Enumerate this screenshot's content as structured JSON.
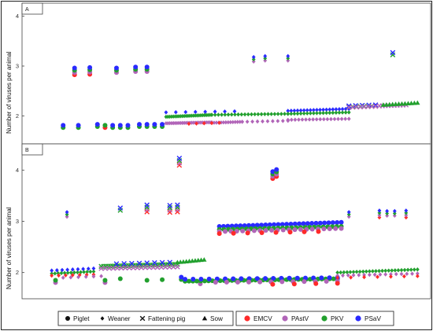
{
  "chart_data": {
    "type": "scatter",
    "ylabel": "Number of viruses per animal",
    "shape_legend": [
      {
        "name": "Piglet",
        "shape": "circle"
      },
      {
        "name": "Weaner",
        "shape": "diamond"
      },
      {
        "name": "Fattening pig",
        "shape": "cross"
      },
      {
        "name": "Sow",
        "shape": "triangle"
      }
    ],
    "virus_legend": [
      {
        "name": "EMCV",
        "color": "#ff2a2a"
      },
      {
        "name": "PAstV",
        "color": "#b165b8"
      },
      {
        "name": "PKV",
        "color": "#22a02e"
      },
      {
        "name": "PSaV",
        "color": "#2a2aff"
      }
    ],
    "panels": [
      {
        "label": "A",
        "ylim": [
          1.5,
          4.2
        ],
        "yticks": [
          "2",
          "3",
          "4"
        ],
        "clusters": [
          {
            "x": 0.05,
            "y": 1.78,
            "shape": "circle",
            "members": [
              "PKV",
              "PSaV"
            ]
          },
          {
            "x": 0.09,
            "y": 1.78,
            "shape": "circle",
            "members": [
              "PKV",
              "PSaV"
            ]
          },
          {
            "x": 0.14,
            "y": 1.8,
            "shape": "circle",
            "members": [
              "PKV",
              "PSaV"
            ]
          },
          {
            "x": 0.16,
            "y": 1.78,
            "shape": "circle",
            "members": [
              "EMCV",
              "PKV"
            ]
          },
          {
            "x": 0.18,
            "y": 1.78,
            "shape": "circle",
            "members": [
              "PKV",
              "PSaV"
            ]
          },
          {
            "x": 0.2,
            "y": 1.78,
            "shape": "circle",
            "members": [
              "PKV",
              "PSaV"
            ]
          },
          {
            "x": 0.22,
            "y": 1.78,
            "shape": "circle",
            "members": [
              "PKV",
              "PSaV"
            ]
          },
          {
            "x": 0.25,
            "y": 1.8,
            "shape": "circle",
            "members": [
              "PKV",
              "PSaV"
            ]
          },
          {
            "x": 0.27,
            "y": 1.8,
            "shape": "circle",
            "members": [
              "PKV",
              "PSaV"
            ]
          },
          {
            "x": 0.29,
            "y": 1.8,
            "shape": "circle",
            "members": [
              "PKV",
              "PSaV"
            ]
          },
          {
            "x": 0.31,
            "y": 1.8,
            "shape": "circle",
            "members": [
              "PKV",
              "PSaV"
            ]
          },
          {
            "x": 0.08,
            "y": 2.87,
            "shape": "circle",
            "members": [
              "EMCV",
              "PAstV",
              "PKV",
              "PSaV"
            ]
          },
          {
            "x": 0.12,
            "y": 2.88,
            "shape": "circle",
            "members": [
              "EMCV",
              "PAstV",
              "PKV",
              "PSaV"
            ]
          },
          {
            "x": 0.19,
            "y": 2.9,
            "shape": "circle",
            "members": [
              "PAstV",
              "PKV",
              "PSaV"
            ]
          },
          {
            "x": 0.24,
            "y": 2.92,
            "shape": "circle",
            "members": [
              "PAstV",
              "PKV",
              "PSaV"
            ]
          },
          {
            "x": 0.27,
            "y": 2.92,
            "shape": "circle",
            "members": [
              "PAstV",
              "PKV",
              "PSaV"
            ]
          },
          {
            "x": 0.55,
            "y": 3.12,
            "shape": "diamond",
            "members": [
              "PAstV",
              "PKV",
              "PSaV"
            ]
          },
          {
            "x": 0.58,
            "y": 3.14,
            "shape": "diamond",
            "members": [
              "PAstV",
              "PKV",
              "PSaV"
            ]
          },
          {
            "x": 0.64,
            "y": 3.14,
            "shape": "diamond",
            "members": [
              "PAstV",
              "PKV",
              "PSaV"
            ]
          },
          {
            "x": 0.915,
            "y": 3.24,
            "shape": "cross",
            "members": [
              "PKV",
              "PSaV"
            ]
          }
        ],
        "runs": [
          {
            "x0": 0.32,
            "x1": 0.44,
            "y0": 1.98,
            "y1": 2.02,
            "n": 26,
            "shape": "diamond",
            "color": "PKV"
          },
          {
            "x0": 0.32,
            "x1": 0.44,
            "y0": 1.85,
            "y1": 1.87,
            "n": 26,
            "shape": "diamond",
            "color": "PAstV"
          },
          {
            "x0": 0.44,
            "x1": 0.64,
            "y0": 2.02,
            "y1": 2.04,
            "n": 24,
            "shape": "diamond",
            "color": "PKV"
          },
          {
            "x0": 0.44,
            "x1": 0.52,
            "y0": 1.86,
            "y1": 1.88,
            "n": 14,
            "shape": "diamond",
            "color": "PAstV"
          },
          {
            "x0": 0.38,
            "x1": 0.46,
            "y0": 1.84,
            "y1": 1.86,
            "n": 5,
            "shape": "diamond",
            "color": "EMCV"
          },
          {
            "x0": 0.52,
            "x1": 0.64,
            "y0": 1.88,
            "y1": 1.9,
            "n": 10,
            "shape": "diamond",
            "color": "PAstV"
          },
          {
            "x0": 0.32,
            "x1": 0.5,
            "y0": 2.07,
            "y1": 2.09,
            "n": 8,
            "shape": "diamond",
            "color": "PSaV"
          },
          {
            "x0": 0.64,
            "x1": 0.8,
            "y0": 2.1,
            "y1": 2.14,
            "n": 20,
            "shape": "diamond",
            "color": "PSaV"
          },
          {
            "x0": 0.64,
            "x1": 0.8,
            "y0": 2.04,
            "y1": 2.07,
            "n": 20,
            "shape": "diamond",
            "color": "PKV"
          },
          {
            "x0": 0.64,
            "x1": 0.8,
            "y0": 1.92,
            "y1": 1.94,
            "n": 18,
            "shape": "diamond",
            "color": "PAstV"
          },
          {
            "x0": 0.8,
            "x1": 0.87,
            "y0": 2.18,
            "y1": 2.2,
            "n": 8,
            "shape": "cross",
            "color": "PKV"
          },
          {
            "x0": 0.8,
            "x1": 0.87,
            "y0": 2.2,
            "y1": 2.22,
            "n": 5,
            "shape": "cross",
            "color": "PSaV"
          },
          {
            "x0": 0.8,
            "x1": 0.87,
            "y0": 2.17,
            "y1": 2.19,
            "n": 8,
            "shape": "cross",
            "color": "PAstV"
          },
          {
            "x0": 0.88,
            "x1": 0.95,
            "y0": 2.2,
            "y1": 2.22,
            "n": 10,
            "shape": "cross",
            "color": "PAstV"
          },
          {
            "x0": 0.89,
            "x1": 0.98,
            "y0": 2.22,
            "y1": 2.26,
            "n": 12,
            "shape": "triangle",
            "color": "PKV"
          }
        ]
      },
      {
        "label": "B",
        "ylim": [
          1.55,
          4.45
        ],
        "yticks": [
          "2",
          "3",
          "4"
        ],
        "clusters": [
          {
            "x": 0.06,
            "y": 3.12,
            "shape": "diamond",
            "members": [
              "PAstV",
              "PKV",
              "PSaV"
            ]
          },
          {
            "x": 0.2,
            "y": 3.23,
            "shape": "cross",
            "members": [
              "PKV",
              "PSaV"
            ]
          },
          {
            "x": 0.27,
            "y": 3.23,
            "shape": "cross",
            "members": [
              "EMCV",
              "PAstV",
              "PKV",
              "PSaV"
            ]
          },
          {
            "x": 0.33,
            "y": 3.22,
            "shape": "cross",
            "members": [
              "EMCV",
              "PAstV",
              "PKV",
              "PSaV"
            ]
          },
          {
            "x": 0.35,
            "y": 3.23,
            "shape": "cross",
            "members": [
              "EMCV",
              "PAstV",
              "PKV",
              "PSaV"
            ]
          },
          {
            "x": 0.355,
            "y": 4.14,
            "shape": "cross",
            "members": [
              "EMCV",
              "PAstV",
              "PKV",
              "PSaV"
            ]
          },
          {
            "x": 0.6,
            "y": 3.88,
            "shape": "circle",
            "members": [
              "EMCV",
              "PAstV",
              "PKV",
              "PSaV"
            ]
          },
          {
            "x": 0.61,
            "y": 3.92,
            "shape": "circle",
            "members": [
              "EMCV",
              "PAstV",
              "PKV",
              "PSaV"
            ]
          },
          {
            "x": 0.8,
            "y": 3.12,
            "shape": "diamond",
            "members": [
              "PAstV",
              "PKV",
              "PSaV"
            ]
          },
          {
            "x": 0.88,
            "y": 3.12,
            "shape": "diamond",
            "members": [
              "EMCV",
              "PAstV",
              "PKV",
              "PSaV"
            ]
          },
          {
            "x": 0.9,
            "y": 3.14,
            "shape": "diamond",
            "members": [
              "PAstV",
              "PKV",
              "PSaV"
            ]
          },
          {
            "x": 0.92,
            "y": 3.14,
            "shape": "diamond",
            "members": [
              "PAstV",
              "PKV",
              "PSaV"
            ]
          },
          {
            "x": 0.95,
            "y": 3.12,
            "shape": "diamond",
            "members": [
              "EMCV",
              "PAstV",
              "PKV",
              "PSaV"
            ]
          },
          {
            "x": 0.03,
            "y": 1.82,
            "shape": "circle",
            "members": [
              "PKV",
              "PAstV"
            ]
          },
          {
            "x": 0.16,
            "y": 1.82,
            "shape": "circle",
            "members": [
              "PKV",
              "PAstV"
            ]
          },
          {
            "x": 0.2,
            "y": 1.88,
            "shape": "circle",
            "members": [
              "PKV"
            ]
          },
          {
            "x": 0.27,
            "y": 1.85,
            "shape": "circle",
            "members": [
              "PKV"
            ]
          },
          {
            "x": 0.31,
            "y": 1.86,
            "shape": "circle",
            "members": [
              "PKV"
            ]
          },
          {
            "x": 0.36,
            "y": 1.88,
            "shape": "circle",
            "members": [
              "PKV",
              "PSaV"
            ]
          },
          {
            "x": 0.41,
            "y": 1.78,
            "shape": "circle",
            "members": [
              "PAstV"
            ]
          }
        ],
        "runs": [
          {
            "x0": 0.02,
            "x1": 0.13,
            "y0": 1.98,
            "y1": 2.02,
            "n": 14,
            "shape": "diamond",
            "color": "PKV"
          },
          {
            "x0": 0.02,
            "x1": 0.13,
            "y0": 2.04,
            "y1": 2.08,
            "n": 9,
            "shape": "diamond",
            "color": "PSaV"
          },
          {
            "x0": 0.02,
            "x1": 0.13,
            "y0": 1.94,
            "y1": 1.96,
            "n": 7,
            "shape": "diamond",
            "color": "EMCV"
          },
          {
            "x0": 0.05,
            "x1": 0.15,
            "y0": 1.9,
            "y1": 1.93,
            "n": 6,
            "shape": "diamond",
            "color": "PAstV"
          },
          {
            "x0": 0.15,
            "x1": 0.35,
            "y0": 2.12,
            "y1": 2.16,
            "n": 34,
            "shape": "cross",
            "color": "PKV"
          },
          {
            "x0": 0.15,
            "x1": 0.35,
            "y0": 2.08,
            "y1": 2.11,
            "n": 20,
            "shape": "cross",
            "color": "PAstV"
          },
          {
            "x0": 0.19,
            "x1": 0.33,
            "y0": 2.17,
            "y1": 2.2,
            "n": 8,
            "shape": "cross",
            "color": "PSaV"
          },
          {
            "x0": 0.35,
            "x1": 0.42,
            "y0": 2.2,
            "y1": 2.25,
            "n": 10,
            "shape": "triangle",
            "color": "PKV"
          },
          {
            "x0": 0.37,
            "x1": 0.77,
            "y0": 1.83,
            "y1": 1.88,
            "n": 40,
            "shape": "circle",
            "color": "PKV"
          },
          {
            "x0": 0.37,
            "x1": 0.77,
            "y0": 1.87,
            "y1": 1.9,
            "n": 20,
            "shape": "circle",
            "color": "PSaV"
          },
          {
            "x0": 0.45,
            "x1": 0.77,
            "y0": 1.81,
            "y1": 1.83,
            "n": 12,
            "shape": "circle",
            "color": "PAstV"
          },
          {
            "x0": 0.6,
            "x1": 0.77,
            "y0": 1.77,
            "y1": 1.79,
            "n": 4,
            "shape": "circle",
            "color": "EMCV"
          },
          {
            "x0": 0.46,
            "x1": 0.78,
            "y0": 2.9,
            "y1": 2.98,
            "n": 30,
            "shape": "circle",
            "color": "PSaV"
          },
          {
            "x0": 0.46,
            "x1": 0.78,
            "y0": 2.84,
            "y1": 2.9,
            "n": 28,
            "shape": "circle",
            "color": "PKV"
          },
          {
            "x0": 0.46,
            "x1": 0.78,
            "y0": 2.8,
            "y1": 2.86,
            "n": 22,
            "shape": "circle",
            "color": "PAstV"
          },
          {
            "x0": 0.46,
            "x1": 0.72,
            "y0": 2.76,
            "y1": 2.8,
            "n": 8,
            "shape": "circle",
            "color": "EMCV"
          },
          {
            "x0": 0.77,
            "x1": 0.98,
            "y0": 2.0,
            "y1": 2.06,
            "n": 26,
            "shape": "diamond",
            "color": "PKV"
          },
          {
            "x0": 0.77,
            "x1": 0.98,
            "y0": 1.94,
            "y1": 1.98,
            "n": 16,
            "shape": "diamond",
            "color": "PAstV"
          },
          {
            "x0": 0.77,
            "x1": 0.98,
            "y0": 1.9,
            "y1": 1.93,
            "n": 7,
            "shape": "diamond",
            "color": "EMCV"
          }
        ]
      }
    ]
  }
}
